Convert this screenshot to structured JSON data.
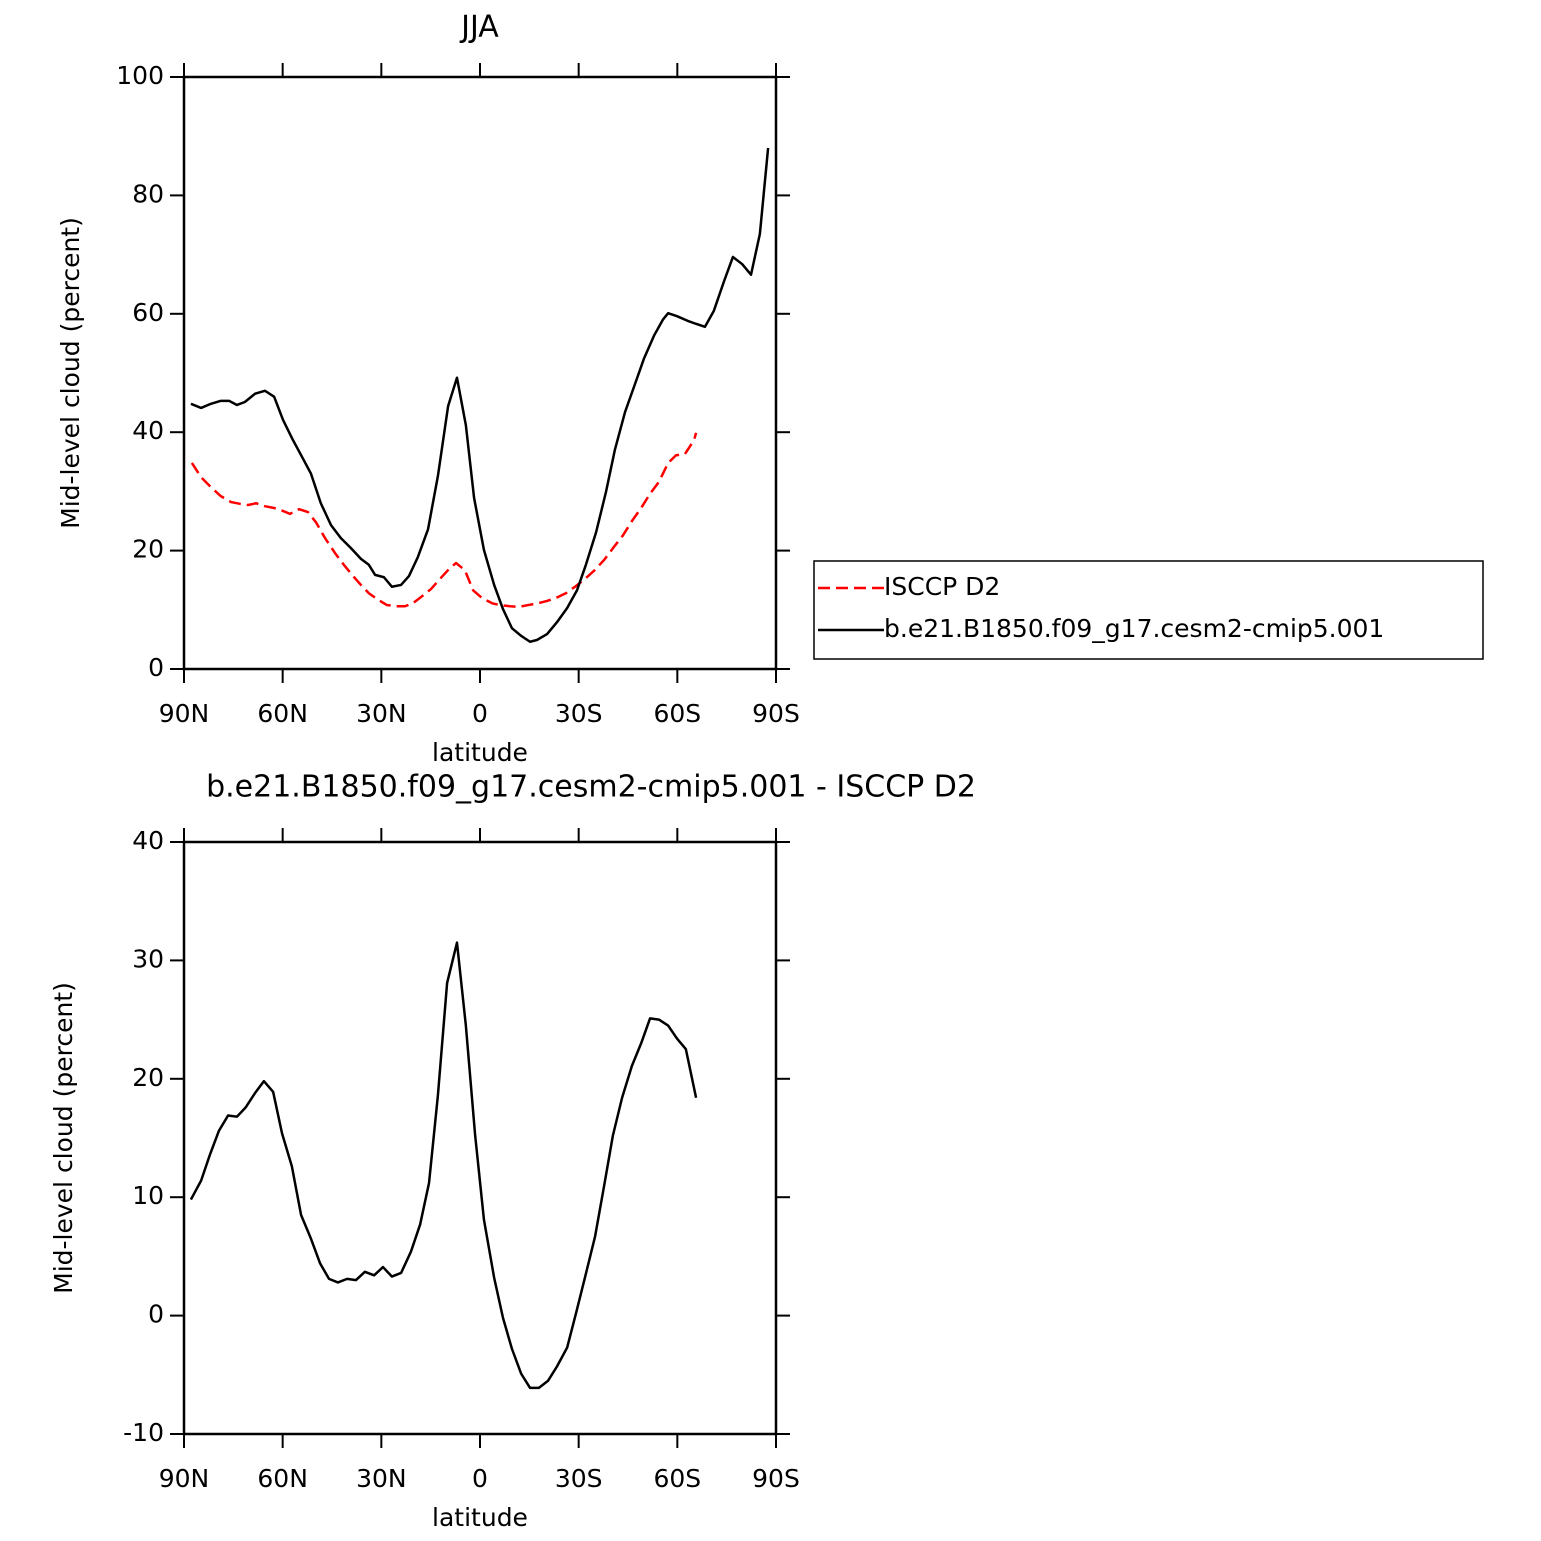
{
  "chart_data": [
    {
      "type": "line",
      "title": "JJA",
      "xlabel": "latitude",
      "ylabel": "Mid-level cloud (percent)",
      "xlim": [
        90,
        -90
      ],
      "xticks": [
        {
          "value": 90,
          "label": "90N"
        },
        {
          "value": 60,
          "label": "60N"
        },
        {
          "value": 30,
          "label": "30N"
        },
        0,
        {
          "value": -30,
          "label": "30S"
        },
        {
          "value": -60,
          "label": "60S"
        },
        {
          "value": -90,
          "label": "90S"
        }
      ],
      "ylim": [
        0,
        100
      ],
      "yticks": [
        0,
        20,
        40,
        60,
        80,
        100
      ],
      "legend": "right",
      "series": [
        {
          "name": "ISCCP D2",
          "color": "#ff0000",
          "dash": true,
          "x": [
            87.6,
            84.8,
            81.8,
            78.8,
            75.7,
            73.0,
            70.5,
            68.1,
            65.4,
            62.6,
            59.9,
            57.8,
            55.0,
            52.3,
            49.9,
            47.1,
            44.1,
            41.4,
            38.6,
            36.2,
            33.8,
            31.0,
            28.3,
            25.5,
            22.8,
            20.4,
            17.6,
            14.9,
            12.2,
            9.4,
            7.3,
            4.6,
            2.1,
            -0.6,
            -3.7,
            -6.1,
            -9.1,
            -11.9,
            -14.6,
            -17.6,
            -20.4,
            -23.1,
            -26.1,
            -28.9,
            -31.9,
            -34.7,
            -37.7,
            -40.7,
            -43.5,
            -46.2,
            -49.0,
            -51.7,
            -54.4,
            -57.2,
            -59.6,
            -62.3,
            -65.1,
            -65.7
          ],
          "values": [
            34.8,
            32.4,
            30.7,
            29.2,
            28.2,
            27.9,
            27.7,
            28.0,
            27.5,
            27.2,
            26.7,
            26.2,
            27.0,
            26.5,
            24.8,
            22.1,
            19.6,
            17.6,
            15.7,
            14.2,
            12.8,
            11.7,
            10.8,
            10.6,
            10.6,
            11.1,
            12.3,
            13.5,
            15.2,
            16.9,
            17.9,
            16.7,
            13.3,
            12.0,
            11.1,
            10.8,
            10.6,
            10.5,
            10.8,
            11.1,
            11.5,
            12.0,
            12.8,
            13.9,
            15.2,
            16.6,
            18.4,
            20.6,
            22.6,
            25.0,
            27.2,
            29.6,
            31.6,
            34.8,
            36.1,
            36.3,
            38.7,
            39.9
          ]
        },
        {
          "name": "b.e21.B1850.f09_g17.cesm2-cmip5.001",
          "color": "#000000",
          "x": [
            87.9,
            84.8,
            81.8,
            78.8,
            76.3,
            73.9,
            71.5,
            68.4,
            65.4,
            62.6,
            59.9,
            56.9,
            53.8,
            51.4,
            48.4,
            45.3,
            42.3,
            39.2,
            36.2,
            33.8,
            31.9,
            29.2,
            26.8,
            24.0,
            21.6,
            18.9,
            15.8,
            12.8,
            9.7,
            7.0,
            4.3,
            1.8,
            -1.2,
            -4.3,
            -7.0,
            -9.7,
            -12.5,
            -15.2,
            -17.3,
            -20.4,
            -23.4,
            -26.5,
            -29.5,
            -32.2,
            -35.3,
            -38.3,
            -41.0,
            -44.1,
            -47.1,
            -49.9,
            -52.9,
            -55.6,
            -57.2,
            -59.9,
            -63.2,
            -65.7,
            -68.4,
            -71.1,
            -74.2,
            -76.9,
            -79.7,
            -82.4,
            -85.1,
            -87.6
          ],
          "values": [
            44.8,
            44.1,
            44.8,
            45.3,
            45.3,
            44.6,
            45.1,
            46.5,
            47.0,
            46.0,
            42.1,
            38.7,
            35.5,
            33.0,
            28.0,
            24.3,
            22.1,
            20.4,
            18.6,
            17.6,
            15.9,
            15.5,
            13.9,
            14.2,
            15.7,
            18.9,
            23.6,
            32.6,
            44.4,
            49.2,
            41.2,
            28.9,
            20.1,
            14.2,
            10.1,
            6.9,
            5.6,
            4.6,
            4.9,
            5.9,
            7.9,
            10.3,
            13.3,
            17.6,
            23.1,
            29.9,
            37.0,
            43.4,
            48.1,
            52.5,
            56.3,
            59.0,
            60.1,
            59.6,
            58.8,
            58.3,
            57.8,
            60.5,
            65.5,
            69.6,
            68.4,
            66.6,
            73.5,
            88.0
          ]
        }
      ]
    },
    {
      "type": "line",
      "title": "b.e21.B1850.f09_g17.cesm2-cmip5.001 - ISCCP D2",
      "xlabel": "latitude",
      "ylabel": "Mid-level cloud (percent)",
      "xlim": [
        90,
        -90
      ],
      "xticks": [
        {
          "value": 90,
          "label": "90N"
        },
        {
          "value": 60,
          "label": "60N"
        },
        {
          "value": 30,
          "label": "30N"
        },
        0,
        {
          "value": -30,
          "label": "30S"
        },
        {
          "value": -60,
          "label": "60S"
        },
        {
          "value": -90,
          "label": "90S"
        }
      ],
      "ylim": [
        -10,
        40
      ],
      "yticks": [
        -10,
        0,
        10,
        20,
        30,
        40
      ],
      "series": [
        {
          "color": "#000000",
          "x": [
            87.9,
            84.8,
            82.1,
            79.4,
            76.6,
            73.9,
            71.2,
            68.4,
            65.7,
            62.9,
            60.2,
            57.2,
            54.4,
            51.4,
            48.6,
            45.9,
            43.2,
            40.4,
            37.7,
            35.0,
            32.2,
            29.5,
            26.8,
            24.0,
            21.0,
            18.2,
            15.5,
            12.8,
            10.0,
            7.0,
            4.3,
            1.5,
            -1.2,
            -4.3,
            -7.0,
            -9.7,
            -12.5,
            -15.2,
            -17.9,
            -20.7,
            -23.4,
            -26.5,
            -29.2,
            -31.9,
            -35.0,
            -37.7,
            -40.4,
            -43.2,
            -46.2,
            -49.0,
            -51.7,
            -54.4,
            -57.2,
            -59.9,
            -62.6,
            -65.7
          ],
          "values": [
            9.8,
            11.4,
            13.6,
            15.6,
            16.9,
            16.8,
            17.6,
            18.8,
            19.8,
            18.9,
            15.4,
            12.6,
            8.5,
            6.5,
            4.4,
            3.1,
            2.8,
            3.1,
            3.0,
            3.7,
            3.4,
            4.1,
            3.3,
            3.6,
            5.4,
            7.7,
            11.2,
            18.6,
            28.1,
            31.5,
            24.5,
            15.3,
            8.1,
            3.2,
            -0.2,
            -2.8,
            -4.9,
            -6.1,
            -6.1,
            -5.5,
            -4.3,
            -2.7,
            0.2,
            3.2,
            6.7,
            10.9,
            15.2,
            18.4,
            21.1,
            23.0,
            25.1,
            25.0,
            24.5,
            23.4,
            22.5,
            18.4
          ]
        }
      ]
    }
  ]
}
